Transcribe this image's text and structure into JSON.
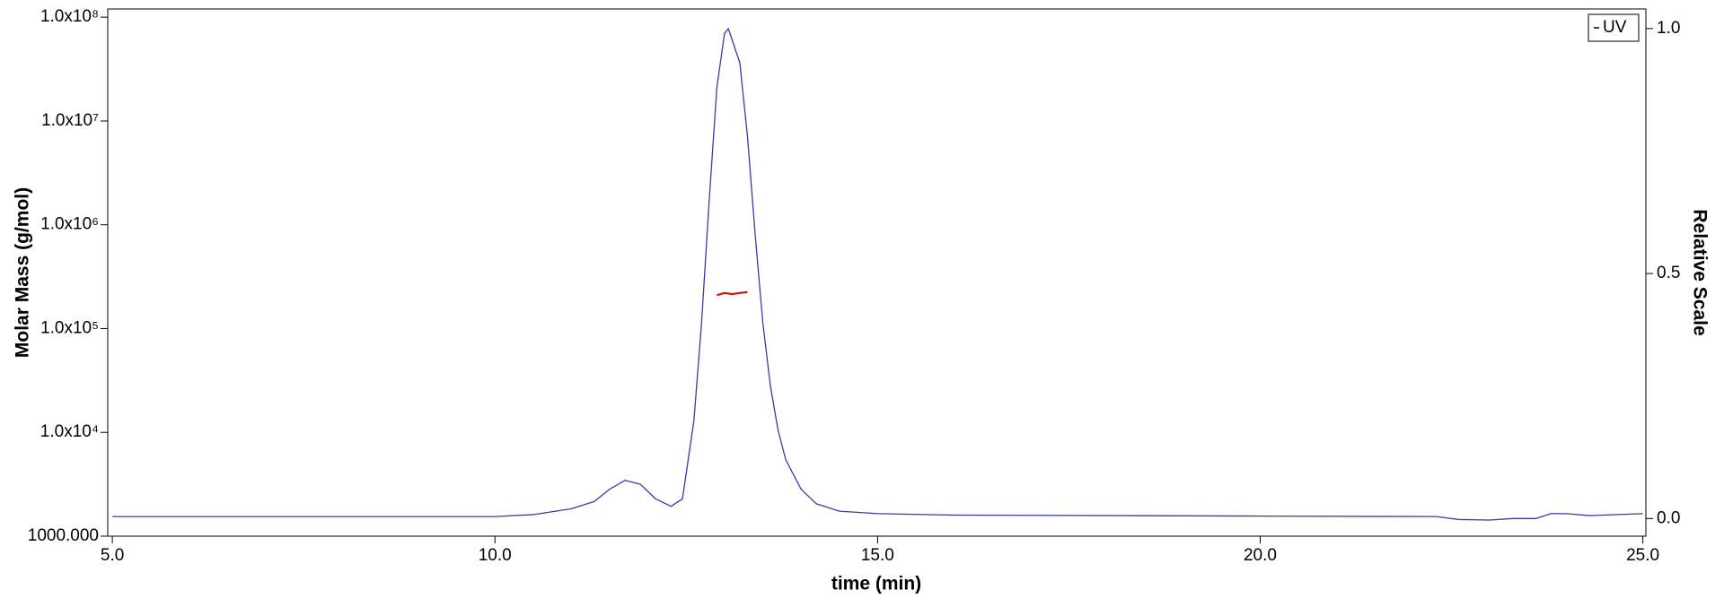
{
  "chart_data": {
    "type": "line",
    "xlabel": "time (min)",
    "ylabel": "Molar Mass (g/mol)",
    "y2label": "Relative Scale",
    "xlim": [
      4.94,
      25.04
    ],
    "xticks": [
      {
        "value": 5,
        "label": "5.0"
      },
      {
        "value": 10,
        "label": "10.0"
      },
      {
        "value": 15,
        "label": "15.0"
      },
      {
        "value": 20,
        "label": "20.0"
      },
      {
        "value": 25,
        "label": "25.0"
      }
    ],
    "ylog": true,
    "ylim": [
      1000,
      120000000
    ],
    "yticks": [
      {
        "value": 1000,
        "label": "1000.000"
      },
      {
        "value": 10000,
        "label": "1.0x10⁴"
      },
      {
        "value": 100000,
        "label": "1.0x10⁵"
      },
      {
        "value": 1000000,
        "label": "1.0x10⁶"
      },
      {
        "value": 10000000,
        "label": "1.0x10⁷"
      },
      {
        "value": 100000000,
        "label": "1.0x10⁸"
      }
    ],
    "y2lim": [
      -0.036,
      1.04
    ],
    "y2ticks": [
      {
        "value": 0,
        "label": "0.0"
      },
      {
        "value": 0.5,
        "label": "0.5"
      },
      {
        "value": 1,
        "label": "1.0"
      }
    ],
    "legend": "top-right",
    "series": [
      {
        "name": "UV",
        "color": "#3a3aa8",
        "axis": "y2",
        "x": [
          5.0,
          10.0,
          10.5,
          11.0,
          11.3,
          11.5,
          11.7,
          11.9,
          12.1,
          12.3,
          12.45,
          12.6,
          12.7,
          12.8,
          12.9,
          13.0,
          13.05,
          13.2,
          13.3,
          13.4,
          13.5,
          13.6,
          13.7,
          13.8,
          14.0,
          14.2,
          14.5,
          15.0,
          16.0,
          20.0,
          22.3,
          22.6,
          23.0,
          23.3,
          23.6,
          23.8,
          24.0,
          24.3,
          25.0
        ],
        "values": [
          0.004,
          0.004,
          0.008,
          0.02,
          0.035,
          0.06,
          0.078,
          0.07,
          0.04,
          0.025,
          0.04,
          0.2,
          0.4,
          0.65,
          0.88,
          0.99,
          1.0,
          0.93,
          0.78,
          0.58,
          0.4,
          0.27,
          0.18,
          0.12,
          0.06,
          0.03,
          0.015,
          0.01,
          0.007,
          0.005,
          0.004,
          -0.002,
          -0.003,
          0.0,
          0.0,
          0.01,
          0.01,
          0.006,
          0.01
        ]
      },
      {
        "color": "#d01010",
        "x": [
          12.9,
          13.0,
          13.1,
          13.2,
          13.3
        ],
        "values": [
          210000,
          220000,
          215000,
          220000,
          225000
        ]
      }
    ]
  }
}
